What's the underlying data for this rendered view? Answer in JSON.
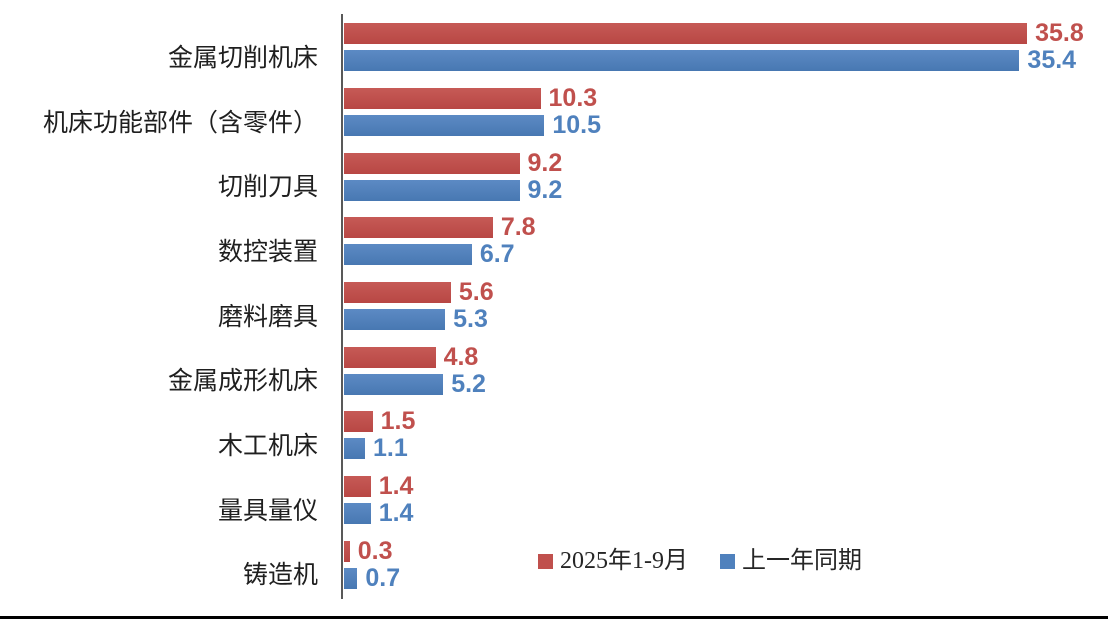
{
  "chart_data": {
    "type": "bar",
    "orientation": "horizontal",
    "title": "",
    "categories": [
      "金属切削机床",
      "机床功能部件（含零件）",
      "切削刀具",
      "数控装置",
      "磨料磨具",
      "金属成形机床",
      "木工机床",
      "量具量仪",
      "铸造机"
    ],
    "series": [
      {
        "name": "2025年1-9月",
        "color": "#c0504d",
        "values": [
          35.8,
          10.3,
          9.2,
          7.8,
          5.6,
          4.8,
          1.5,
          1.4,
          0.3
        ]
      },
      {
        "name": "上一年同期",
        "color": "#4f81bd",
        "values": [
          35.4,
          10.5,
          9.2,
          6.7,
          5.3,
          5.2,
          1.1,
          1.4,
          0.7
        ]
      }
    ],
    "value_labels": true,
    "xlim": [
      0,
      40
    ],
    "grid": false,
    "legend_position": "bottom-center-inside",
    "axis_color": "#595959"
  }
}
